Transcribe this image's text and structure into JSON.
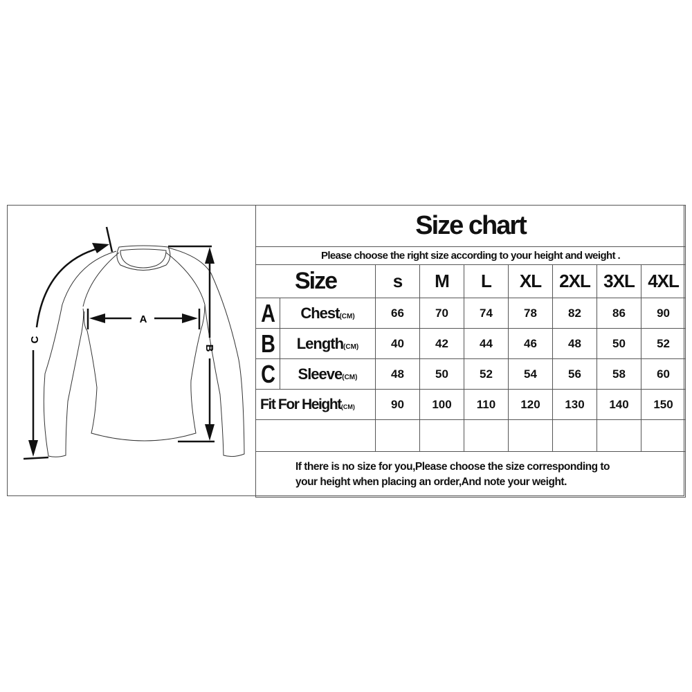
{
  "title": "Size chart",
  "subtitle": "Please choose the right size according to your height and weight .",
  "size_header": "Size",
  "sizes": [
    "s",
    "M",
    "L",
    "XL",
    "2XL",
    "3XL",
    "4XL"
  ],
  "rows": [
    {
      "letter": "A",
      "label": "Chest",
      "unit": "(CM)",
      "values": [
        "66",
        "70",
        "74",
        "78",
        "82",
        "86",
        "90"
      ]
    },
    {
      "letter": "B",
      "label": "Length",
      "unit": "(CM)",
      "values": [
        "40",
        "42",
        "44",
        "46",
        "48",
        "50",
        "52"
      ]
    },
    {
      "letter": "C",
      "label": "Sleeve",
      "unit": "(CM)",
      "values": [
        "48",
        "50",
        "52",
        "54",
        "56",
        "58",
        "60"
      ]
    }
  ],
  "fit": {
    "label": "Fit For Height",
    "unit": "(CM)",
    "values": [
      "90",
      "100",
      "110",
      "120",
      "130",
      "140",
      "150"
    ]
  },
  "footer": {
    "line1": "If there is no size for you,Please choose the size corresponding to",
    "line2": "your height when placing an order,And note your weight."
  },
  "diagram": {
    "label_a": "A",
    "label_b": "B",
    "label_c": "C"
  }
}
